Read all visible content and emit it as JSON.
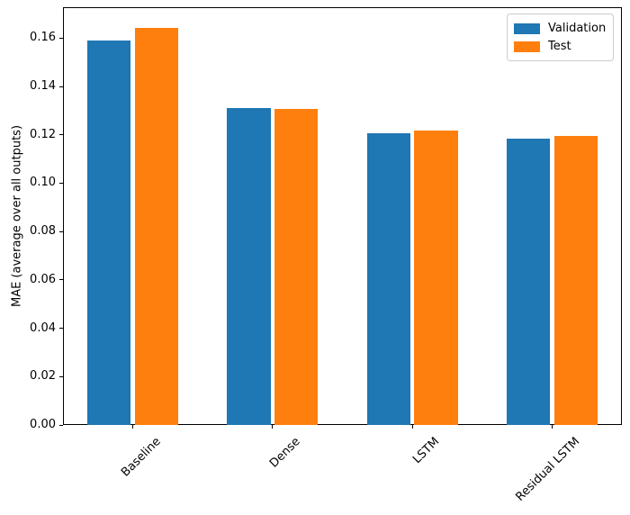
{
  "chart_data": {
    "type": "bar",
    "title": "",
    "xlabel": "",
    "ylabel": "MAE (average over all outputs)",
    "categories": [
      "Baseline",
      "Dense",
      "LSTM",
      "Residual LSTM"
    ],
    "series": [
      {
        "name": "Validation",
        "color": "#1f77b4",
        "values": [
          0.159,
          0.1311,
          0.1205,
          0.1183
        ]
      },
      {
        "name": "Test",
        "color": "#ff7f0e",
        "values": [
          0.1643,
          0.1308,
          0.1218,
          0.1195
        ]
      }
    ],
    "ylim": [
      0,
      0.1728
    ],
    "yticks": [
      0.0,
      0.02,
      0.04,
      0.06,
      0.08,
      0.1,
      0.12,
      0.14,
      0.16
    ],
    "ytick_labels": [
      "0.00",
      "0.02",
      "0.04",
      "0.06",
      "0.08",
      "0.10",
      "0.12",
      "0.14",
      "0.16"
    ],
    "grid": false,
    "legend_position": "upper right",
    "x_tick_rotation_deg": 45,
    "bar_width_fraction": 0.31,
    "bar_offset_fraction": 0.17
  }
}
